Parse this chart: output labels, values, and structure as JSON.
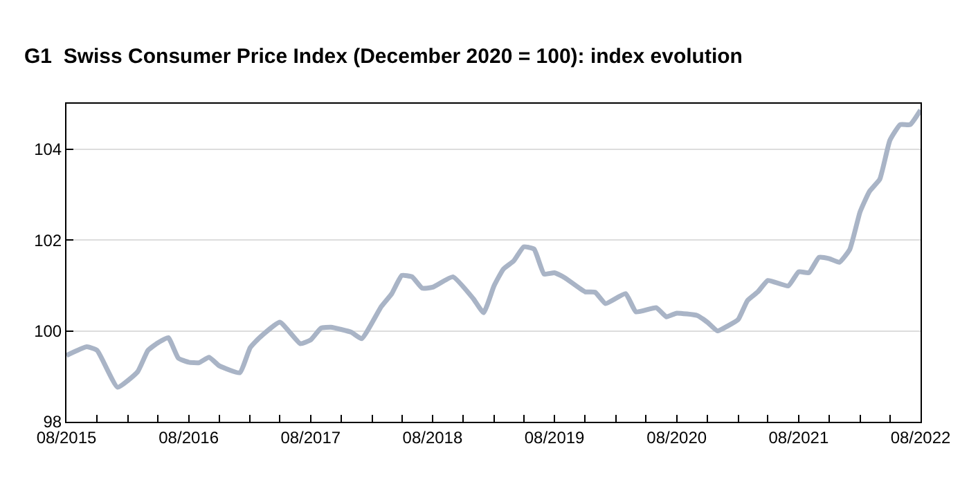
{
  "chart_data": {
    "type": "line",
    "title": "G1  Swiss Consumer Price Index (December 2020 = 100): index evolution",
    "x": [
      "2015-08",
      "2015-10",
      "2015-11",
      "2016-01",
      "2016-03",
      "2016-04",
      "2016-05",
      "2016-06",
      "2016-07",
      "2016-08",
      "2016-09",
      "2016-10",
      "2016-11",
      "2017-01",
      "2017-02",
      "2017-03",
      "2017-05",
      "2017-07",
      "2017-08",
      "2017-09",
      "2017-10",
      "2017-12",
      "2018-01",
      "2018-03",
      "2018-04",
      "2018-05",
      "2018-06",
      "2018-07",
      "2018-08",
      "2018-10",
      "2018-12",
      "2019-01",
      "2019-02",
      "2019-03",
      "2019-04",
      "2019-05",
      "2019-06",
      "2019-07",
      "2019-08",
      "2019-09",
      "2019-11",
      "2019-12",
      "2020-01",
      "2020-03",
      "2020-04",
      "2020-06",
      "2020-07",
      "2020-08",
      "2020-10",
      "2020-11",
      "2020-12",
      "2021-01",
      "2021-02",
      "2021-03",
      "2021-04",
      "2021-05",
      "2021-07",
      "2021-08",
      "2021-09",
      "2021-10",
      "2021-11",
      "2021-12",
      "2022-01",
      "2022-02",
      "2022-03",
      "2022-04",
      "2022-05",
      "2022-06",
      "2022-07",
      "2022-08"
    ],
    "series": [
      {
        "color": "#a9b4c6",
        "values": [
          99.46,
          99.65,
          99.57,
          98.76,
          99.1,
          99.57,
          99.74,
          99.85,
          99.4,
          99.31,
          99.3,
          99.42,
          99.23,
          99.08,
          99.63,
          99.85,
          100.19,
          99.72,
          99.8,
          100.06,
          100.08,
          99.97,
          99.83,
          100.54,
          100.82,
          101.22,
          101.19,
          100.94,
          100.96,
          101.19,
          100.71,
          100.4,
          100.99,
          101.36,
          101.54,
          101.85,
          101.8,
          101.25,
          101.28,
          101.17,
          100.86,
          100.85,
          100.6,
          100.82,
          100.42,
          100.51,
          100.31,
          100.39,
          100.34,
          100.19,
          100.0,
          100.11,
          100.25,
          100.67,
          100.86,
          101.11,
          100.99,
          101.3,
          101.28,
          101.62,
          101.59,
          101.51,
          101.79,
          102.62,
          103.07,
          103.34,
          104.19,
          104.54,
          104.54,
          104.86
        ]
      }
    ],
    "xlim": [
      "2015-08",
      "2022-08"
    ],
    "xticks": [
      {
        "value": "2015-08",
        "label": "08/2015"
      },
      {
        "value": "2015-11",
        "label": null
      },
      {
        "value": "2016-02",
        "label": null
      },
      {
        "value": "2016-05",
        "label": null
      },
      {
        "value": "2016-08",
        "label": "08/2016"
      },
      {
        "value": "2016-11",
        "label": null
      },
      {
        "value": "2017-02",
        "label": null
      },
      {
        "value": "2017-05",
        "label": null
      },
      {
        "value": "2017-08",
        "label": "08/2017"
      },
      {
        "value": "2017-11",
        "label": null
      },
      {
        "value": "2018-02",
        "label": null
      },
      {
        "value": "2018-05",
        "label": null
      },
      {
        "value": "2018-08",
        "label": "08/2018"
      },
      {
        "value": "2018-11",
        "label": null
      },
      {
        "value": "2019-02",
        "label": null
      },
      {
        "value": "2019-05",
        "label": null
      },
      {
        "value": "2019-08",
        "label": "08/2019"
      },
      {
        "value": "2019-11",
        "label": null
      },
      {
        "value": "2020-02",
        "label": null
      },
      {
        "value": "2020-05",
        "label": null
      },
      {
        "value": "2020-08",
        "label": "08/2020"
      },
      {
        "value": "2020-11",
        "label": null
      },
      {
        "value": "2021-02",
        "label": null
      },
      {
        "value": "2021-05",
        "label": null
      },
      {
        "value": "2021-08",
        "label": "08/2021"
      },
      {
        "value": "2021-11",
        "label": null
      },
      {
        "value": "2022-02",
        "label": null
      },
      {
        "value": "2022-05",
        "label": null
      },
      {
        "value": "2022-08",
        "label": "08/2022"
      }
    ],
    "ylim": [
      98,
      105
    ],
    "yticks": [
      98,
      100,
      102,
      104
    ],
    "grid": "y",
    "line_style": "solid"
  }
}
